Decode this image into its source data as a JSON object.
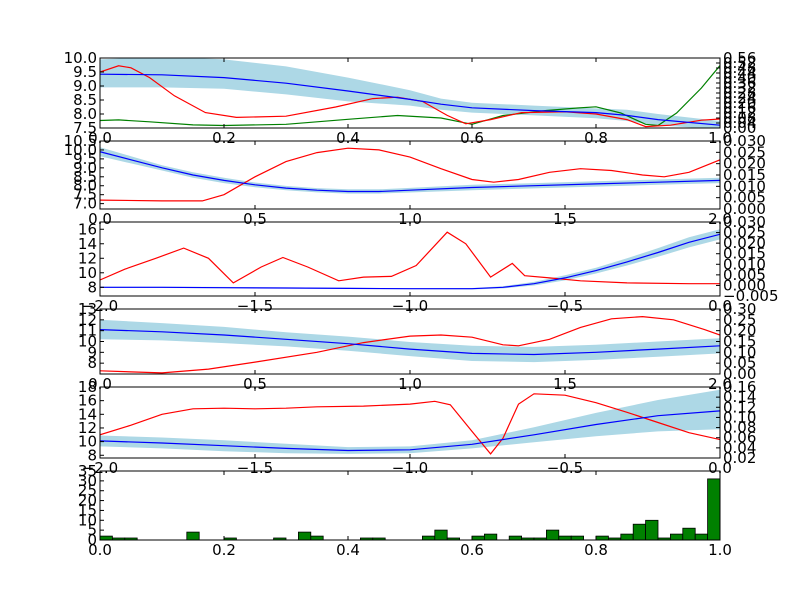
{
  "colors": {
    "mean": "#0000ff",
    "band": "#add8e6",
    "acquisition": "#ff0000",
    "secondary": "#008000",
    "hist": "#008000"
  },
  "chart_data": [
    {
      "type": "line",
      "xlim": [
        0,
        1
      ],
      "ylim": [
        7.5,
        10.0
      ],
      "y2lim": [
        0.0,
        0.56
      ],
      "x_ticks": [
        "0.0",
        "0.2",
        "0.4",
        "0.6",
        "0.8",
        "1.0"
      ],
      "x_tick_values": [
        0,
        0.2,
        0.4,
        0.6,
        0.8,
        1.0
      ],
      "y_ticks": [
        "7.5",
        "8.0",
        "8.5",
        "9.0",
        "9.5",
        "10.0"
      ],
      "y_tick_values": [
        7.5,
        8.0,
        8.5,
        9.0,
        9.5,
        10.0
      ],
      "y2_ticks": [
        "0.00",
        "0.04",
        "0.08",
        "0.12",
        "0.16",
        "0.20",
        "0.24",
        "0.28",
        "0.32",
        "0.36",
        "0.40",
        "0.44",
        "0.48",
        "0.52",
        "0.56"
      ],
      "y2_tick_values": [
        0.0,
        0.04,
        0.08,
        0.12,
        0.16,
        0.2,
        0.24,
        0.28,
        0.32,
        0.36,
        0.4,
        0.44,
        0.48,
        0.52,
        0.56
      ],
      "x": [
        0.0,
        0.1,
        0.2,
        0.3,
        0.4,
        0.5,
        0.55,
        0.6,
        0.7,
        0.8,
        0.85,
        0.9,
        1.0
      ],
      "mean": [
        9.42,
        9.4,
        9.3,
        9.1,
        8.82,
        8.52,
        8.35,
        8.22,
        8.12,
        8.05,
        7.95,
        7.8,
        7.6
      ],
      "band_lower": [
        8.95,
        8.95,
        8.9,
        8.7,
        8.45,
        8.3,
        8.15,
        8.05,
        7.95,
        7.85,
        7.75,
        7.6,
        7.45
      ],
      "band_upper": [
        9.95,
        10.05,
        9.95,
        9.7,
        9.3,
        8.85,
        8.55,
        8.4,
        8.3,
        8.2,
        8.15,
        8.0,
        7.75
      ],
      "acquisition": [
        [
          0.0,
          9.5
        ],
        [
          0.03,
          9.72
        ],
        [
          0.05,
          9.65
        ],
        [
          0.08,
          9.3
        ],
        [
          0.12,
          8.65
        ],
        [
          0.17,
          8.05
        ],
        [
          0.22,
          7.88
        ],
        [
          0.3,
          7.92
        ],
        [
          0.38,
          8.25
        ],
        [
          0.44,
          8.55
        ],
        [
          0.48,
          8.6
        ],
        [
          0.52,
          8.45
        ],
        [
          0.56,
          7.95
        ],
        [
          0.59,
          7.65
        ],
        [
          0.63,
          7.8
        ],
        [
          0.68,
          8.05
        ],
        [
          0.75,
          8.08
        ],
        [
          0.8,
          8.0
        ],
        [
          0.85,
          7.8
        ],
        [
          0.88,
          7.55
        ],
        [
          0.92,
          7.6
        ],
        [
          0.97,
          7.78
        ],
        [
          1.0,
          7.82
        ]
      ],
      "secondary_y2": [
        [
          0.0,
          0.06
        ],
        [
          0.03,
          0.065
        ],
        [
          0.08,
          0.05
        ],
        [
          0.15,
          0.025
        ],
        [
          0.2,
          0.02
        ],
        [
          0.3,
          0.03
        ],
        [
          0.4,
          0.07
        ],
        [
          0.48,
          0.1
        ],
        [
          0.55,
          0.08
        ],
        [
          0.6,
          0.03
        ],
        [
          0.65,
          0.1
        ],
        [
          0.72,
          0.14
        ],
        [
          0.77,
          0.16
        ],
        [
          0.8,
          0.17
        ],
        [
          0.84,
          0.12
        ],
        [
          0.88,
          0.03
        ],
        [
          0.9,
          0.02
        ],
        [
          0.93,
          0.12
        ],
        [
          0.97,
          0.32
        ],
        [
          1.0,
          0.5
        ]
      ]
    },
    {
      "type": "line",
      "xlim": [
        0,
        2
      ],
      "ylim": [
        6.7,
        10.5
      ],
      "y2lim": [
        0.0,
        0.03
      ],
      "x_ticks": [
        "0.0",
        "0.5",
        "1.0",
        "1.5",
        "2.0"
      ],
      "x_tick_values": [
        0,
        0.5,
        1.0,
        1.5,
        2.0
      ],
      "y_ticks": [
        "7.0",
        "7.5",
        "8.0",
        "8.5",
        "9.0",
        "9.5",
        "10.0",
        "10.5"
      ],
      "y_tick_values": [
        7.0,
        7.5,
        8.0,
        8.5,
        9.0,
        9.5,
        10.0,
        10.5
      ],
      "y2_ticks": [
        "0.000",
        "0.005",
        "0.010",
        "0.015",
        "0.020",
        "0.025",
        "0.030"
      ],
      "y2_tick_values": [
        0.0,
        0.005,
        0.01,
        0.015,
        0.02,
        0.025,
        0.03
      ],
      "x": [
        0.0,
        0.1,
        0.2,
        0.3,
        0.4,
        0.5,
        0.6,
        0.7,
        0.8,
        0.9,
        1.0,
        1.2,
        1.4,
        1.6,
        1.8,
        2.0
      ],
      "mean": [
        9.9,
        9.45,
        9.0,
        8.6,
        8.3,
        8.05,
        7.87,
        7.75,
        7.68,
        7.68,
        7.75,
        7.9,
        8.0,
        8.1,
        8.2,
        8.3
      ],
      "band_lower": [
        9.65,
        9.25,
        8.85,
        8.45,
        8.15,
        7.92,
        7.75,
        7.63,
        7.56,
        7.56,
        7.62,
        7.75,
        7.85,
        7.95,
        8.05,
        8.15
      ],
      "band_upper": [
        10.15,
        9.65,
        9.15,
        8.75,
        8.45,
        8.18,
        7.99,
        7.87,
        7.8,
        7.8,
        7.88,
        8.05,
        8.15,
        8.25,
        8.35,
        8.45
      ],
      "acquisition": [
        [
          0.0,
          7.2
        ],
        [
          0.2,
          7.15
        ],
        [
          0.33,
          7.15
        ],
        [
          0.4,
          7.5
        ],
        [
          0.5,
          8.5
        ],
        [
          0.6,
          9.35
        ],
        [
          0.7,
          9.85
        ],
        [
          0.8,
          10.1
        ],
        [
          0.9,
          10.0
        ],
        [
          1.0,
          9.6
        ],
        [
          1.1,
          8.95
        ],
        [
          1.2,
          8.35
        ],
        [
          1.27,
          8.2
        ],
        [
          1.35,
          8.35
        ],
        [
          1.45,
          8.75
        ],
        [
          1.55,
          8.95
        ],
        [
          1.65,
          8.85
        ],
        [
          1.75,
          8.6
        ],
        [
          1.82,
          8.5
        ],
        [
          1.9,
          8.75
        ],
        [
          2.0,
          9.45
        ]
      ]
    },
    {
      "type": "line",
      "xlim": [
        -2.0,
        0.0
      ],
      "ylim": [
        6.8,
        17
      ],
      "y2lim": [
        -0.005,
        0.03
      ],
      "x_ticks": [
        "−2.0",
        "−1.5",
        "−1.0",
        "−0.5",
        "0.0"
      ],
      "x_tick_values": [
        -2.0,
        -1.5,
        -1.0,
        -0.5,
        0.0
      ],
      "y_ticks": [
        "8",
        "10",
        "12",
        "14",
        "16"
      ],
      "y_tick_values": [
        8,
        10,
        12,
        14,
        16
      ],
      "y2_ticks": [
        "−0.005",
        "0.000",
        "0.005",
        "0.010",
        "0.015",
        "0.020",
        "0.025",
        "0.030"
      ],
      "y2_tick_values": [
        -0.005,
        0.0,
        0.005,
        0.01,
        0.015,
        0.02,
        0.025,
        0.03
      ],
      "x": [
        -2.0,
        -1.8,
        -1.6,
        -1.4,
        -1.2,
        -1.0,
        -0.8,
        -0.7,
        -0.6,
        -0.5,
        -0.4,
        -0.3,
        -0.2,
        -0.1,
        0.0
      ],
      "mean": [
        8.0,
        8.0,
        7.95,
        7.9,
        7.85,
        7.8,
        7.8,
        8.0,
        8.5,
        9.3,
        10.3,
        11.5,
        12.8,
        14.2,
        15.3
      ],
      "band_lower": [
        7.9,
        7.9,
        7.85,
        7.82,
        7.77,
        7.72,
        7.7,
        7.85,
        8.25,
        8.95,
        9.9,
        11.0,
        12.2,
        13.5,
        14.6
      ],
      "band_upper": [
        8.1,
        8.1,
        8.05,
        7.98,
        7.93,
        7.88,
        7.9,
        8.15,
        8.75,
        9.65,
        10.7,
        12.0,
        13.4,
        14.9,
        16.0
      ],
      "acquisition": [
        [
          -2.0,
          9.0
        ],
        [
          -1.92,
          10.5
        ],
        [
          -1.82,
          12.0
        ],
        [
          -1.73,
          13.4
        ],
        [
          -1.65,
          12.0
        ],
        [
          -1.57,
          8.6
        ],
        [
          -1.48,
          10.8
        ],
        [
          -1.41,
          12.1
        ],
        [
          -1.33,
          10.8
        ],
        [
          -1.23,
          8.9
        ],
        [
          -1.15,
          9.4
        ],
        [
          -1.06,
          9.5
        ],
        [
          -0.98,
          11.0
        ],
        [
          -0.88,
          15.6
        ],
        [
          -0.82,
          14.0
        ],
        [
          -0.74,
          9.4
        ],
        [
          -0.67,
          11.3
        ],
        [
          -0.63,
          9.6
        ],
        [
          -0.55,
          9.3
        ],
        [
          -0.45,
          8.9
        ],
        [
          -0.3,
          8.6
        ],
        [
          -0.1,
          8.5
        ],
        [
          0.0,
          8.5
        ]
      ]
    },
    {
      "type": "line",
      "xlim": [
        0,
        2
      ],
      "ylim": [
        7,
        13
      ],
      "y2lim": [
        0.0,
        0.3
      ],
      "x_ticks": [
        "0.0",
        "0.5",
        "1.0",
        "1.5",
        "2.0"
      ],
      "x_tick_values": [
        0,
        0.5,
        1.0,
        1.5,
        2.0
      ],
      "y_ticks": [
        "8",
        "9",
        "10",
        "11",
        "12",
        "13"
      ],
      "y_tick_values": [
        8,
        9,
        10,
        11,
        12,
        13
      ],
      "y2_ticks": [
        "0.00",
        "0.05",
        "0.10",
        "0.15",
        "0.20",
        "0.25",
        "0.30"
      ],
      "y2_tick_values": [
        0.0,
        0.05,
        0.1,
        0.15,
        0.2,
        0.25,
        0.3
      ],
      "x": [
        0.0,
        0.2,
        0.4,
        0.6,
        0.8,
        1.0,
        1.2,
        1.4,
        1.6,
        1.8,
        2.0
      ],
      "mean": [
        11.1,
        10.9,
        10.6,
        10.2,
        9.8,
        9.3,
        8.9,
        8.8,
        9.0,
        9.3,
        9.6
      ],
      "band_lower": [
        10.2,
        10.1,
        9.85,
        9.55,
        9.15,
        8.65,
        8.2,
        8.1,
        8.3,
        8.6,
        8.9
      ],
      "band_upper": [
        12.0,
        11.7,
        11.35,
        10.85,
        10.45,
        9.95,
        9.6,
        9.5,
        9.7,
        10.0,
        10.3
      ],
      "acquisition": [
        [
          0.0,
          7.3
        ],
        [
          0.2,
          7.1
        ],
        [
          0.35,
          7.45
        ],
        [
          0.5,
          8.1
        ],
        [
          0.7,
          9.0
        ],
        [
          0.85,
          9.9
        ],
        [
          1.0,
          10.5
        ],
        [
          1.1,
          10.6
        ],
        [
          1.2,
          10.4
        ],
        [
          1.3,
          9.7
        ],
        [
          1.35,
          9.6
        ],
        [
          1.45,
          10.2
        ],
        [
          1.55,
          11.3
        ],
        [
          1.65,
          12.1
        ],
        [
          1.75,
          12.3
        ],
        [
          1.85,
          12.0
        ],
        [
          1.95,
          11.1
        ],
        [
          2.0,
          10.6
        ]
      ]
    },
    {
      "type": "line",
      "xlim": [
        -2.0,
        0.0
      ],
      "ylim": [
        7.6,
        18
      ],
      "y2lim": [
        0.02,
        0.16
      ],
      "x_ticks": [
        "−2.0",
        "−1.5",
        "−1.0",
        "−0.5",
        "0.0"
      ],
      "x_tick_values": [
        -2.0,
        -1.5,
        -1.0,
        -0.5,
        0.0
      ],
      "y_ticks": [
        "8",
        "10",
        "12",
        "14",
        "16",
        "18"
      ],
      "y_tick_values": [
        8,
        10,
        12,
        14,
        16,
        18
      ],
      "y2_ticks": [
        "0.02",
        "0.04",
        "0.06",
        "0.08",
        "0.10",
        "0.12",
        "0.14",
        "0.16"
      ],
      "y2_tick_values": [
        0.02,
        0.04,
        0.06,
        0.08,
        0.1,
        0.12,
        0.14,
        0.16
      ],
      "x": [
        -2.0,
        -1.8,
        -1.6,
        -1.4,
        -1.2,
        -1.0,
        -0.8,
        -0.6,
        -0.4,
        -0.2,
        0.0
      ],
      "mean": [
        10.1,
        9.8,
        9.4,
        9.0,
        8.7,
        8.8,
        9.6,
        11.0,
        12.5,
        13.8,
        14.5
      ],
      "band_lower": [
        9.3,
        9.0,
        8.6,
        8.3,
        8.2,
        8.3,
        9.0,
        9.9,
        10.8,
        11.5,
        11.8
      ],
      "band_upper": [
        10.9,
        10.6,
        10.2,
        9.7,
        9.2,
        9.3,
        10.2,
        12.1,
        14.2,
        16.1,
        17.6
      ],
      "acquisition": [
        [
          -2.0,
          11.0
        ],
        [
          -1.9,
          12.4
        ],
        [
          -1.8,
          14.0
        ],
        [
          -1.7,
          14.8
        ],
        [
          -1.6,
          14.9
        ],
        [
          -1.5,
          14.8
        ],
        [
          -1.4,
          14.9
        ],
        [
          -1.3,
          15.1
        ],
        [
          -1.15,
          15.2
        ],
        [
          -1.0,
          15.5
        ],
        [
          -0.92,
          15.9
        ],
        [
          -0.87,
          15.4
        ],
        [
          -0.8,
          11.5
        ],
        [
          -0.74,
          8.2
        ],
        [
          -0.7,
          10.5
        ],
        [
          -0.65,
          15.5
        ],
        [
          -0.6,
          17.0
        ],
        [
          -0.5,
          16.8
        ],
        [
          -0.4,
          15.7
        ],
        [
          -0.3,
          14.3
        ],
        [
          -0.2,
          12.8
        ],
        [
          -0.1,
          11.3
        ],
        [
          0.0,
          10.3
        ]
      ]
    },
    {
      "type": "bar",
      "xlim": [
        0,
        1
      ],
      "ylim": [
        0,
        35
      ],
      "x_ticks": [
        "0.0",
        "0.2",
        "0.4",
        "0.6",
        "0.8",
        "1.0"
      ],
      "x_tick_values": [
        0,
        0.2,
        0.4,
        0.6,
        0.8,
        1.0
      ],
      "y_ticks": [
        "0",
        "5",
        "10",
        "15",
        "20",
        "25",
        "30",
        "35"
      ],
      "y_tick_values": [
        0,
        5,
        10,
        15,
        20,
        25,
        30,
        35
      ],
      "bin_width": 0.02,
      "bins": [
        [
          0.01,
          2
        ],
        [
          0.03,
          1
        ],
        [
          0.05,
          1
        ],
        [
          0.13,
          0
        ],
        [
          0.15,
          4
        ],
        [
          0.21,
          1
        ],
        [
          0.29,
          1
        ],
        [
          0.33,
          4
        ],
        [
          0.35,
          2
        ],
        [
          0.43,
          1
        ],
        [
          0.45,
          1
        ],
        [
          0.53,
          2
        ],
        [
          0.55,
          5
        ],
        [
          0.57,
          1
        ],
        [
          0.61,
          2
        ],
        [
          0.63,
          3
        ],
        [
          0.67,
          2
        ],
        [
          0.69,
          1
        ],
        [
          0.71,
          1
        ],
        [
          0.73,
          5
        ],
        [
          0.75,
          2
        ],
        [
          0.77,
          2
        ],
        [
          0.81,
          2
        ],
        [
          0.83,
          1
        ],
        [
          0.85,
          3
        ],
        [
          0.87,
          8
        ],
        [
          0.89,
          10
        ],
        [
          0.91,
          1
        ],
        [
          0.93,
          3
        ],
        [
          0.95,
          6
        ],
        [
          0.97,
          3
        ],
        [
          0.99,
          31
        ]
      ]
    }
  ]
}
